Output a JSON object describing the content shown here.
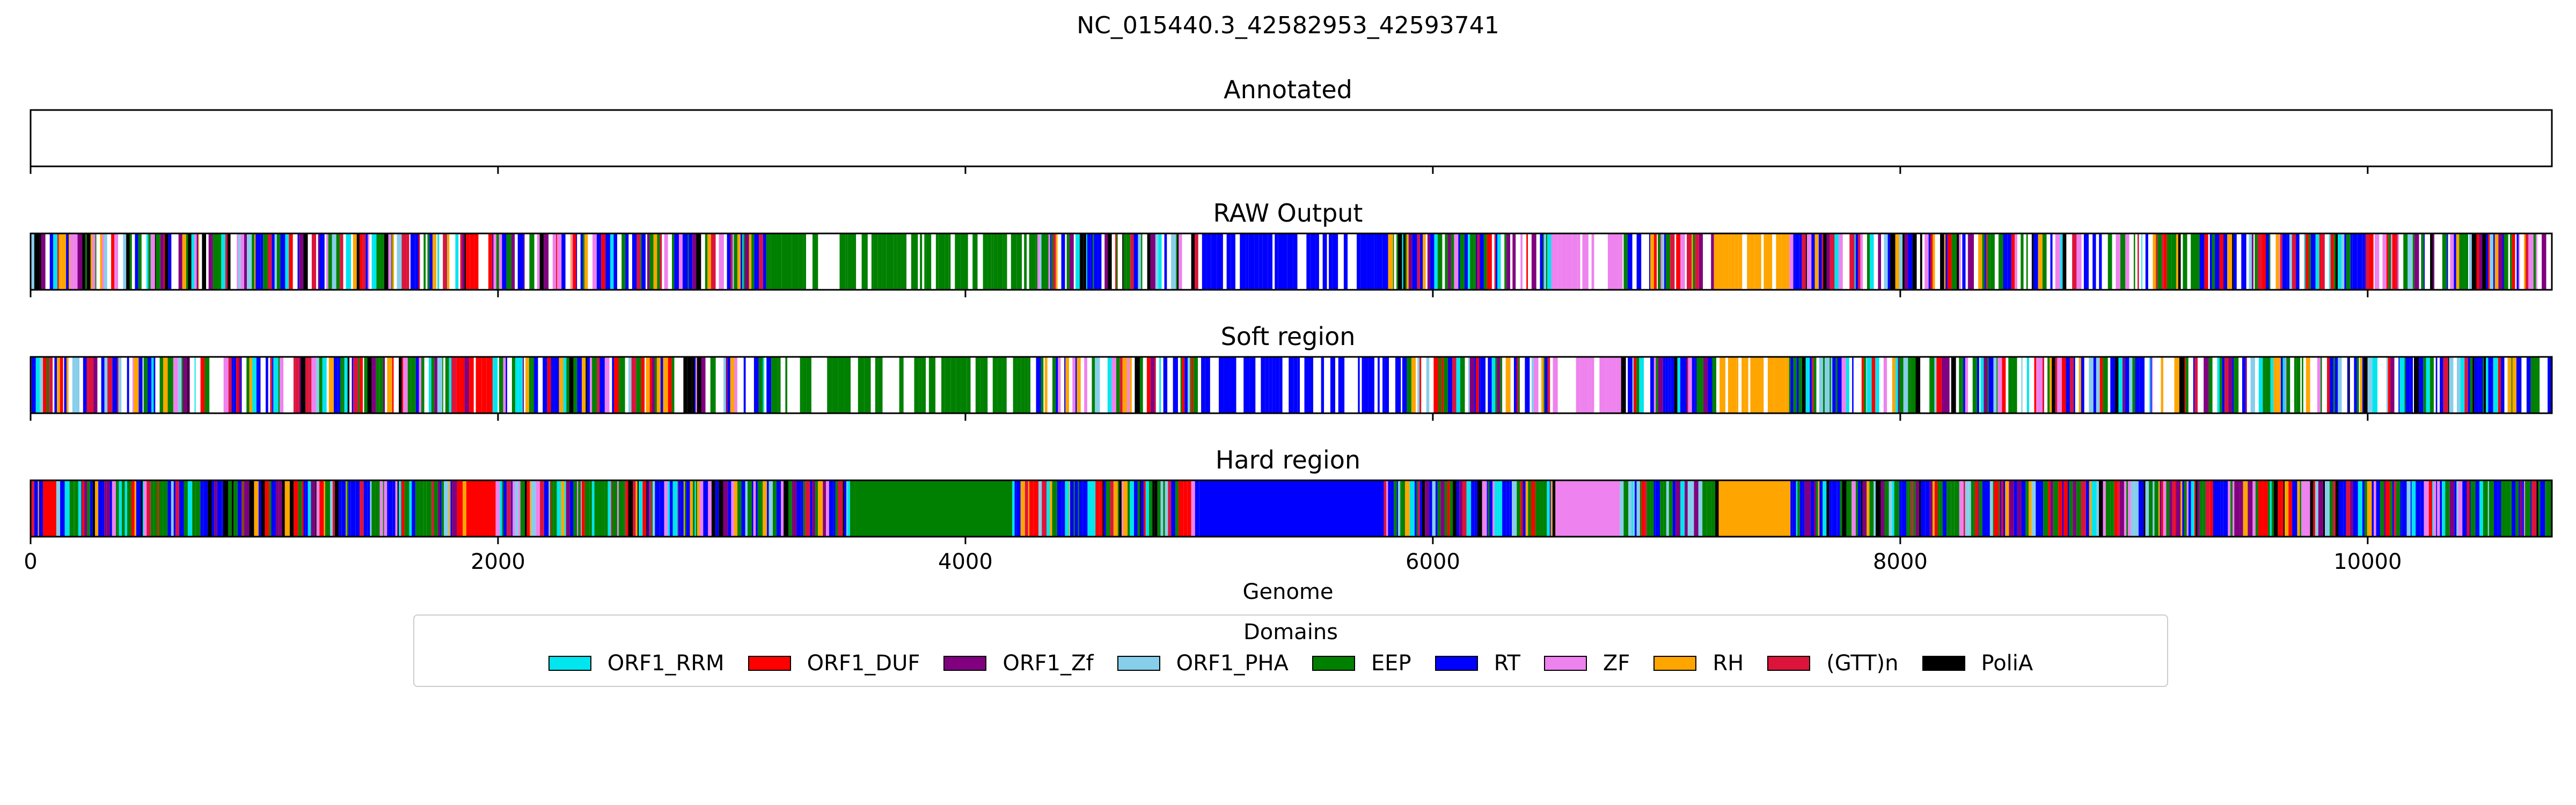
{
  "chart_data": {
    "type": "bar",
    "title": "NC_015440.3_42582953_42593741",
    "xlabel": "Genome",
    "xlim": [
      0,
      10788
    ],
    "xticks": [
      0,
      2000,
      4000,
      6000,
      8000,
      10000
    ],
    "tracks": [
      {
        "title": "Annotated",
        "style": "empty",
        "segments": []
      },
      {
        "title": "RAW Output",
        "style": "raw",
        "segments": [
          {
            "domain": "ORF1_DUF",
            "start": 1860,
            "end": 1960
          },
          {
            "domain": "EEP",
            "start": 3150,
            "end": 4300
          },
          {
            "domain": "RT",
            "start": 5000,
            "end": 5800
          },
          {
            "domain": "ZF",
            "start": 6500,
            "end": 6800
          },
          {
            "domain": "RH",
            "start": 7200,
            "end": 7520
          }
        ]
      },
      {
        "title": "Soft region",
        "style": "raw",
        "segments": [
          {
            "domain": "ORF1_DUF",
            "start": 1860,
            "end": 1960
          },
          {
            "domain": "EEP",
            "start": 3150,
            "end": 4300
          },
          {
            "domain": "RT",
            "start": 5000,
            "end": 5800
          },
          {
            "domain": "ZF",
            "start": 6500,
            "end": 6800
          },
          {
            "domain": "RH",
            "start": 7200,
            "end": 7520
          }
        ]
      },
      {
        "title": "Hard region",
        "style": "hard",
        "segments": [
          {
            "domain": "ORF1_DUF",
            "start": 40,
            "end": 110
          },
          {
            "domain": "ORF1_DUF",
            "start": 1860,
            "end": 1990
          },
          {
            "domain": "EEP",
            "start": 3520,
            "end": 4200
          },
          {
            "domain": "RT",
            "start": 5000,
            "end": 5790
          },
          {
            "domain": "ZF",
            "start": 6520,
            "end": 6800
          },
          {
            "domain": "RH",
            "start": 7210,
            "end": 7530
          }
        ]
      }
    ],
    "legend": {
      "title": "Domains",
      "entries": [
        {
          "label": "ORF1_RRM",
          "color": "#00e5ee"
        },
        {
          "label": "ORF1_DUF",
          "color": "#ff0000"
        },
        {
          "label": "ORF1_Zf",
          "color": "#800080"
        },
        {
          "label": "ORF1_PHA",
          "color": "#87ceeb"
        },
        {
          "label": "EEP",
          "color": "#008000"
        },
        {
          "label": "RT",
          "color": "#0000ff"
        },
        {
          "label": "ZF",
          "color": "#ee82ee"
        },
        {
          "label": "RH",
          "color": "#ffa500"
        },
        {
          "label": "(GTT)n",
          "color": "#dc143c"
        },
        {
          "label": "PoliA",
          "color": "#000000"
        }
      ]
    }
  }
}
